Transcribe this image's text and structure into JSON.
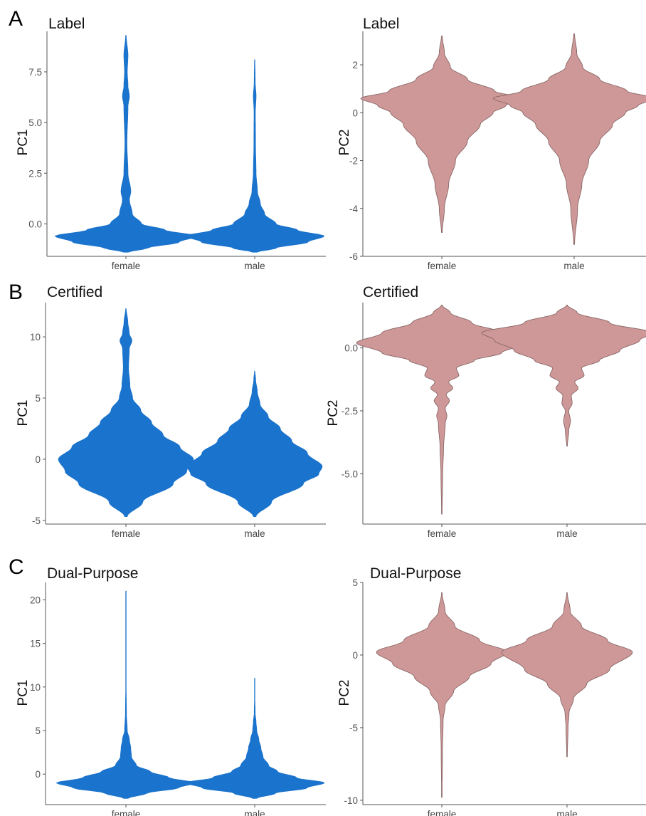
{
  "panels": [
    {
      "letter": "A"
    },
    {
      "letter": "B"
    },
    {
      "letter": "C"
    }
  ],
  "colors": {
    "pc1_fill": "#1a73cc",
    "pc2_fill": "#cf9898",
    "pc2_stroke": "#8a6767"
  },
  "chart_data": [
    {
      "type": "violin",
      "title": "Label",
      "ylabel": "PC1",
      "categories": [
        "female",
        "male"
      ],
      "ylim": [
        -1.6,
        9.5
      ],
      "yticks": [
        {
          "value": 0.0,
          "label": "0.0"
        },
        {
          "value": 2.5,
          "label": "2.5"
        },
        {
          "value": 5.0,
          "label": "5.0"
        },
        {
          "value": 7.5,
          "label": "7.5"
        }
      ],
      "series": [
        {
          "category": "female",
          "min": -1.4,
          "max": 9.3,
          "mode": -0.6,
          "profile": [
            [
              -1.4,
              0.03
            ],
            [
              -1.2,
              0.3
            ],
            [
              -0.9,
              0.75
            ],
            [
              -0.6,
              1.0
            ],
            [
              -0.3,
              0.55
            ],
            [
              0,
              0.22
            ],
            [
              0.5,
              0.09
            ],
            [
              1.2,
              0.05
            ],
            [
              1.6,
              0.07
            ],
            [
              2.5,
              0.03
            ],
            [
              4,
              0.015
            ],
            [
              5.8,
              0.03
            ],
            [
              6.3,
              0.05
            ],
            [
              6.8,
              0.03
            ],
            [
              7.5,
              0.02
            ],
            [
              8.3,
              0.03
            ],
            [
              9.3,
              0.005
            ]
          ]
        },
        {
          "category": "male",
          "min": -1.4,
          "max": 8.1,
          "mode": -0.6,
          "profile": [
            [
              -1.4,
              0.03
            ],
            [
              -1.2,
              0.3
            ],
            [
              -0.9,
              0.75
            ],
            [
              -0.6,
              0.98
            ],
            [
              -0.3,
              0.6
            ],
            [
              0,
              0.3
            ],
            [
              0.5,
              0.14
            ],
            [
              1.0,
              0.08
            ],
            [
              1.6,
              0.04
            ],
            [
              2.5,
              0.02
            ],
            [
              4,
              0.012
            ],
            [
              5.5,
              0.01
            ],
            [
              6.3,
              0.02
            ],
            [
              7,
              0.008
            ],
            [
              8.1,
              0.004
            ]
          ]
        }
      ]
    },
    {
      "type": "violin",
      "title": "Label",
      "ylabel": "PC2",
      "categories": [
        "female",
        "male"
      ],
      "ylim": [
        -6.0,
        3.4
      ],
      "yticks": [
        {
          "value": -6,
          "label": "-6"
        },
        {
          "value": -4,
          "label": "-4"
        },
        {
          "value": -2,
          "label": "-2"
        },
        {
          "value": 0,
          "label": "0"
        },
        {
          "value": 2,
          "label": "2"
        }
      ],
      "series": [
        {
          "category": "female",
          "min": -5.0,
          "max": 3.2,
          "mode": 0.6,
          "profile": [
            [
              -5.0,
              0.005
            ],
            [
              -4.0,
              0.03
            ],
            [
              -3.0,
              0.08
            ],
            [
              -2.0,
              0.16
            ],
            [
              -1.2,
              0.3
            ],
            [
              -0.5,
              0.45
            ],
            [
              0,
              0.6
            ],
            [
              0.3,
              0.75
            ],
            [
              0.6,
              0.95
            ],
            [
              0.9,
              0.62
            ],
            [
              1.4,
              0.3
            ],
            [
              1.9,
              0.1
            ],
            [
              2.5,
              0.03
            ],
            [
              3.2,
              0.005
            ]
          ]
        },
        {
          "category": "male",
          "min": -5.5,
          "max": 3.3,
          "mode": 0.6,
          "profile": [
            [
              -5.5,
              0.005
            ],
            [
              -4.0,
              0.04
            ],
            [
              -3.0,
              0.09
            ],
            [
              -2.0,
              0.17
            ],
            [
              -1.2,
              0.3
            ],
            [
              -0.5,
              0.45
            ],
            [
              0,
              0.6
            ],
            [
              0.3,
              0.75
            ],
            [
              0.6,
              0.95
            ],
            [
              0.9,
              0.62
            ],
            [
              1.4,
              0.3
            ],
            [
              1.9,
              0.1
            ],
            [
              2.5,
              0.03
            ],
            [
              3.3,
              0.005
            ]
          ]
        }
      ]
    },
    {
      "type": "violin",
      "title": "Certified",
      "ylabel": "PC1",
      "categories": [
        "female",
        "male"
      ],
      "ylim": [
        -5.3,
        12.8
      ],
      "yticks": [
        {
          "value": -5,
          "label": "-5"
        },
        {
          "value": 0,
          "label": "0"
        },
        {
          "value": 5,
          "label": "5"
        },
        {
          "value": 10,
          "label": "10"
        }
      ],
      "series": [
        {
          "category": "female",
          "min": -4.7,
          "max": 12.3,
          "mode": 0,
          "profile": [
            [
              -4.7,
              0.02
            ],
            [
              -3.5,
              0.25
            ],
            [
              -2.0,
              0.7
            ],
            [
              -1.0,
              0.9
            ],
            [
              0,
              1.0
            ],
            [
              1.0,
              0.8
            ],
            [
              2.0,
              0.55
            ],
            [
              3.0,
              0.38
            ],
            [
              4.0,
              0.22
            ],
            [
              5.0,
              0.1
            ],
            [
              6.0,
              0.06
            ],
            [
              7.5,
              0.04
            ],
            [
              9.0,
              0.05
            ],
            [
              9.7,
              0.09
            ],
            [
              10.3,
              0.05
            ],
            [
              11.2,
              0.03
            ],
            [
              12.3,
              0.005
            ]
          ]
        },
        {
          "category": "male",
          "min": -4.7,
          "max": 7.2,
          "mode": -0.7,
          "profile": [
            [
              -4.7,
              0.02
            ],
            [
              -3.5,
              0.25
            ],
            [
              -2.0,
              0.72
            ],
            [
              -1.2,
              0.95
            ],
            [
              -0.6,
              1.0
            ],
            [
              0.5,
              0.78
            ],
            [
              1.5,
              0.55
            ],
            [
              2.5,
              0.38
            ],
            [
              3.5,
              0.2
            ],
            [
              4.5,
              0.08
            ],
            [
              5.5,
              0.04
            ],
            [
              6.5,
              0.015
            ],
            [
              7.2,
              0.004
            ]
          ]
        }
      ]
    },
    {
      "type": "violin",
      "title": "Certified",
      "ylabel": "PC2",
      "categories": [
        "female",
        "male"
      ],
      "ylim": [
        -7.0,
        1.8
      ],
      "yticks": [
        {
          "value": -5.0,
          "label": "-5.0"
        },
        {
          "value": -2.5,
          "label": "-2.5"
        },
        {
          "value": 0.0,
          "label": "0.0"
        }
      ],
      "series": [
        {
          "category": "female",
          "min": -6.6,
          "max": 1.7,
          "mode": 0.2,
          "profile": [
            [
              -6.6,
              0.003
            ],
            [
              -5,
              0.01
            ],
            [
              -4,
              0.02
            ],
            [
              -3,
              0.04
            ],
            [
              -2.7,
              0.06
            ],
            [
              -2.4,
              0.04
            ],
            [
              -2.1,
              0.09
            ],
            [
              -1.85,
              0.05
            ],
            [
              -1.6,
              0.13
            ],
            [
              -1.35,
              0.08
            ],
            [
              -1.1,
              0.2
            ],
            [
              -0.8,
              0.17
            ],
            [
              -0.5,
              0.38
            ],
            [
              -0.2,
              0.7
            ],
            [
              0.2,
              1.0
            ],
            [
              0.6,
              0.7
            ],
            [
              1.0,
              0.35
            ],
            [
              1.4,
              0.1
            ],
            [
              1.7,
              0.005
            ]
          ]
        },
        {
          "category": "male",
          "min": -3.9,
          "max": 1.7,
          "mode": 0.6,
          "profile": [
            [
              -3.9,
              0.004
            ],
            [
              -3.3,
              0.02
            ],
            [
              -2.9,
              0.04
            ],
            [
              -2.5,
              0.02
            ],
            [
              -2.2,
              0.06
            ],
            [
              -1.9,
              0.05
            ],
            [
              -1.6,
              0.13
            ],
            [
              -1.35,
              0.09
            ],
            [
              -1.1,
              0.2
            ],
            [
              -0.8,
              0.17
            ],
            [
              -0.5,
              0.38
            ],
            [
              -0.1,
              0.62
            ],
            [
              0.3,
              0.85
            ],
            [
              0.6,
              1.0
            ],
            [
              1.0,
              0.5
            ],
            [
              1.4,
              0.12
            ],
            [
              1.7,
              0.005
            ]
          ]
        }
      ]
    },
    {
      "type": "violin",
      "title": "Dual-Purpose",
      "ylabel": "PC1",
      "categories": [
        "female",
        "male"
      ],
      "ylim": [
        -3.5,
        22.0
      ],
      "yticks": [
        {
          "value": 0,
          "label": "0"
        },
        {
          "value": 5,
          "label": "5"
        },
        {
          "value": 10,
          "label": "10"
        },
        {
          "value": 15,
          "label": "15"
        },
        {
          "value": 20,
          "label": "20"
        }
      ],
      "series": [
        {
          "category": "female",
          "min": -2.8,
          "max": 21.0,
          "mode": -1.0,
          "profile": [
            [
              -2.8,
              0.03
            ],
            [
              -2.2,
              0.3
            ],
            [
              -1.6,
              0.75
            ],
            [
              -1.0,
              1.0
            ],
            [
              -0.4,
              0.62
            ],
            [
              0.3,
              0.35
            ],
            [
              1.0,
              0.15
            ],
            [
              2.0,
              0.08
            ],
            [
              3.0,
              0.07
            ],
            [
              4.0,
              0.05
            ],
            [
              5.0,
              0.02
            ],
            [
              7.0,
              0.008
            ],
            [
              10,
              0.004
            ],
            [
              15,
              0.003
            ],
            [
              21,
              0.001
            ]
          ]
        },
        {
          "category": "male",
          "min": -2.8,
          "max": 11.0,
          "mode": -1.0,
          "profile": [
            [
              -2.8,
              0.03
            ],
            [
              -2.2,
              0.3
            ],
            [
              -1.6,
              0.75
            ],
            [
              -1.0,
              1.0
            ],
            [
              -0.4,
              0.6
            ],
            [
              0.3,
              0.33
            ],
            [
              1.0,
              0.2
            ],
            [
              2.0,
              0.12
            ],
            [
              3.0,
              0.09
            ],
            [
              4.0,
              0.06
            ],
            [
              5.0,
              0.03
            ],
            [
              6.0,
              0.02
            ],
            [
              7.0,
              0.008
            ],
            [
              9.0,
              0.003
            ],
            [
              11,
              0.001
            ]
          ]
        }
      ]
    },
    {
      "type": "violin",
      "title": "Dual-Purpose",
      "ylabel": "PC2",
      "categories": [
        "female",
        "male"
      ],
      "ylim": [
        -10.3,
        5.0
      ],
      "yticks": [
        {
          "value": -10,
          "label": "-10"
        },
        {
          "value": -5,
          "label": "-5"
        },
        {
          "value": 0,
          "label": "0"
        },
        {
          "value": 5,
          "label": "5"
        }
      ],
      "series": [
        {
          "category": "female",
          "min": -9.8,
          "max": 4.3,
          "mode": 0.2,
          "profile": [
            [
              -9.8,
              0.003
            ],
            [
              -6.5,
              0.01
            ],
            [
              -4.5,
              0.02
            ],
            [
              -3.5,
              0.05
            ],
            [
              -2.5,
              0.18
            ],
            [
              -1.5,
              0.42
            ],
            [
              -0.6,
              0.75
            ],
            [
              0.2,
              1.0
            ],
            [
              1.0,
              0.58
            ],
            [
              2.0,
              0.2
            ],
            [
              3.0,
              0.05
            ],
            [
              4.3,
              0.004
            ]
          ]
        },
        {
          "category": "male",
          "min": -7.0,
          "max": 4.3,
          "mode": 0.2,
          "profile": [
            [
              -7.0,
              0.004
            ],
            [
              -5.0,
              0.015
            ],
            [
              -4.0,
              0.03
            ],
            [
              -3.0,
              0.1
            ],
            [
              -2.0,
              0.3
            ],
            [
              -1.0,
              0.65
            ],
            [
              0.2,
              1.0
            ],
            [
              1.0,
              0.62
            ],
            [
              2.0,
              0.22
            ],
            [
              3.0,
              0.05
            ],
            [
              4.3,
              0.004
            ]
          ]
        }
      ]
    }
  ]
}
